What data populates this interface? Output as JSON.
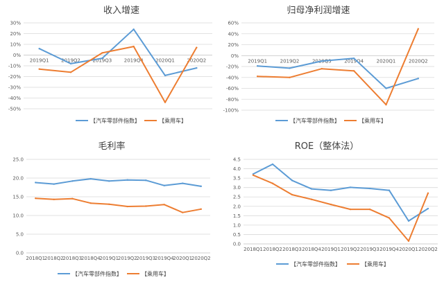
{
  "colors": {
    "series_a": "#5b9bd5",
    "series_b": "#ed7d31"
  },
  "chart_data": [
    {
      "type": "line",
      "title": "收入增速",
      "categories": [
        "2019Q1",
        "2019Q2",
        "2019Q3",
        "2019Q4",
        "2020Q1",
        "2020Q2"
      ],
      "ylim": [
        -50,
        30
      ],
      "yticks": [
        "30%",
        "20%",
        "10%",
        "0%",
        "-10%",
        "-20%",
        "-30%",
        "-40%",
        "-50%"
      ],
      "ytick_values": [
        30,
        20,
        10,
        0,
        -10,
        -20,
        -30,
        -40,
        -50
      ],
      "zero_axis": true,
      "grid": true,
      "legend": "bottom",
      "series": [
        {
          "name": "【汽车零部件指数】",
          "values": [
            6,
            -8,
            -3,
            24,
            -19,
            -12
          ]
        },
        {
          "name": "【乘用车】",
          "values": [
            -13,
            -16,
            2,
            8,
            -44,
            7
          ]
        }
      ]
    },
    {
      "type": "line",
      "title": "归母净利润增速",
      "categories": [
        "2019Q1",
        "2019Q2",
        "2019Q3",
        "2019Q4",
        "2020Q1",
        "2020Q2"
      ],
      "ylim": [
        -100,
        60
      ],
      "yticks": [
        "60%",
        "40%",
        "20%",
        "0%",
        "-20%",
        "-40%",
        "-60%",
        "-80%",
        "-100%"
      ],
      "ytick_values": [
        60,
        40,
        20,
        0,
        -20,
        -40,
        -60,
        -80,
        -100
      ],
      "zero_axis": true,
      "grid": true,
      "legend": "bottom",
      "series": [
        {
          "name": "【汽车零部件指数】",
          "values": [
            -19,
            -23,
            -10,
            -5,
            -60,
            -42
          ]
        },
        {
          "name": "【乘用车】",
          "values": [
            -38,
            -40,
            -24,
            -28,
            -90,
            49
          ]
        }
      ]
    },
    {
      "type": "line",
      "title": "毛利率",
      "categories": [
        "2018Q1",
        "2018Q2",
        "2018Q3",
        "2018Q4",
        "2019Q1",
        "2019Q2",
        "2019Q3",
        "2019Q4",
        "2020Q1",
        "2020Q2"
      ],
      "ylim": [
        0,
        25
      ],
      "yticks": [
        "25.0",
        "20.0",
        "15.0",
        "10.0",
        "5.0",
        "0.0"
      ],
      "ytick_values": [
        25,
        20,
        15,
        10,
        5,
        0
      ],
      "zero_axis": false,
      "grid": true,
      "legend": "bottom",
      "series": [
        {
          "name": "【汽车零部件指数】",
          "values": [
            18.8,
            18.4,
            19.2,
            19.8,
            19.2,
            19.5,
            19.4,
            18.0,
            18.6,
            17.8
          ]
        },
        {
          "name": "【乘用车】",
          "values": [
            14.6,
            14.3,
            14.5,
            13.3,
            13.0,
            12.4,
            12.5,
            12.9,
            10.8,
            11.7
          ]
        }
      ]
    },
    {
      "type": "line",
      "title": "ROE（整体法）",
      "categories": [
        "2018Q1",
        "2018Q2",
        "2018Q3",
        "2018Q4",
        "2019Q1",
        "2019Q2",
        "2019Q3",
        "2019Q4",
        "2020Q1",
        "2020Q2"
      ],
      "ylim": [
        0,
        4.5
      ],
      "yticks": [
        "4.5",
        "4.0",
        "3.5",
        "3.0",
        "2.5",
        "2.0",
        "1.5",
        "1.0",
        "0.5",
        "0.0"
      ],
      "ytick_values": [
        4.5,
        4.0,
        3.5,
        3.0,
        2.5,
        2.0,
        1.5,
        1.0,
        0.5,
        0.0
      ],
      "zero_axis": false,
      "grid": true,
      "legend": "bottom",
      "series": [
        {
          "name": "【汽车零部件指数】",
          "values": [
            3.72,
            4.24,
            3.38,
            2.93,
            2.85,
            3.01,
            2.95,
            2.85,
            1.22,
            1.88
          ]
        },
        {
          "name": "【乘用车】",
          "values": [
            3.66,
            3.22,
            2.62,
            2.37,
            2.1,
            1.84,
            1.84,
            1.38,
            0.15,
            2.7
          ]
        }
      ]
    }
  ]
}
